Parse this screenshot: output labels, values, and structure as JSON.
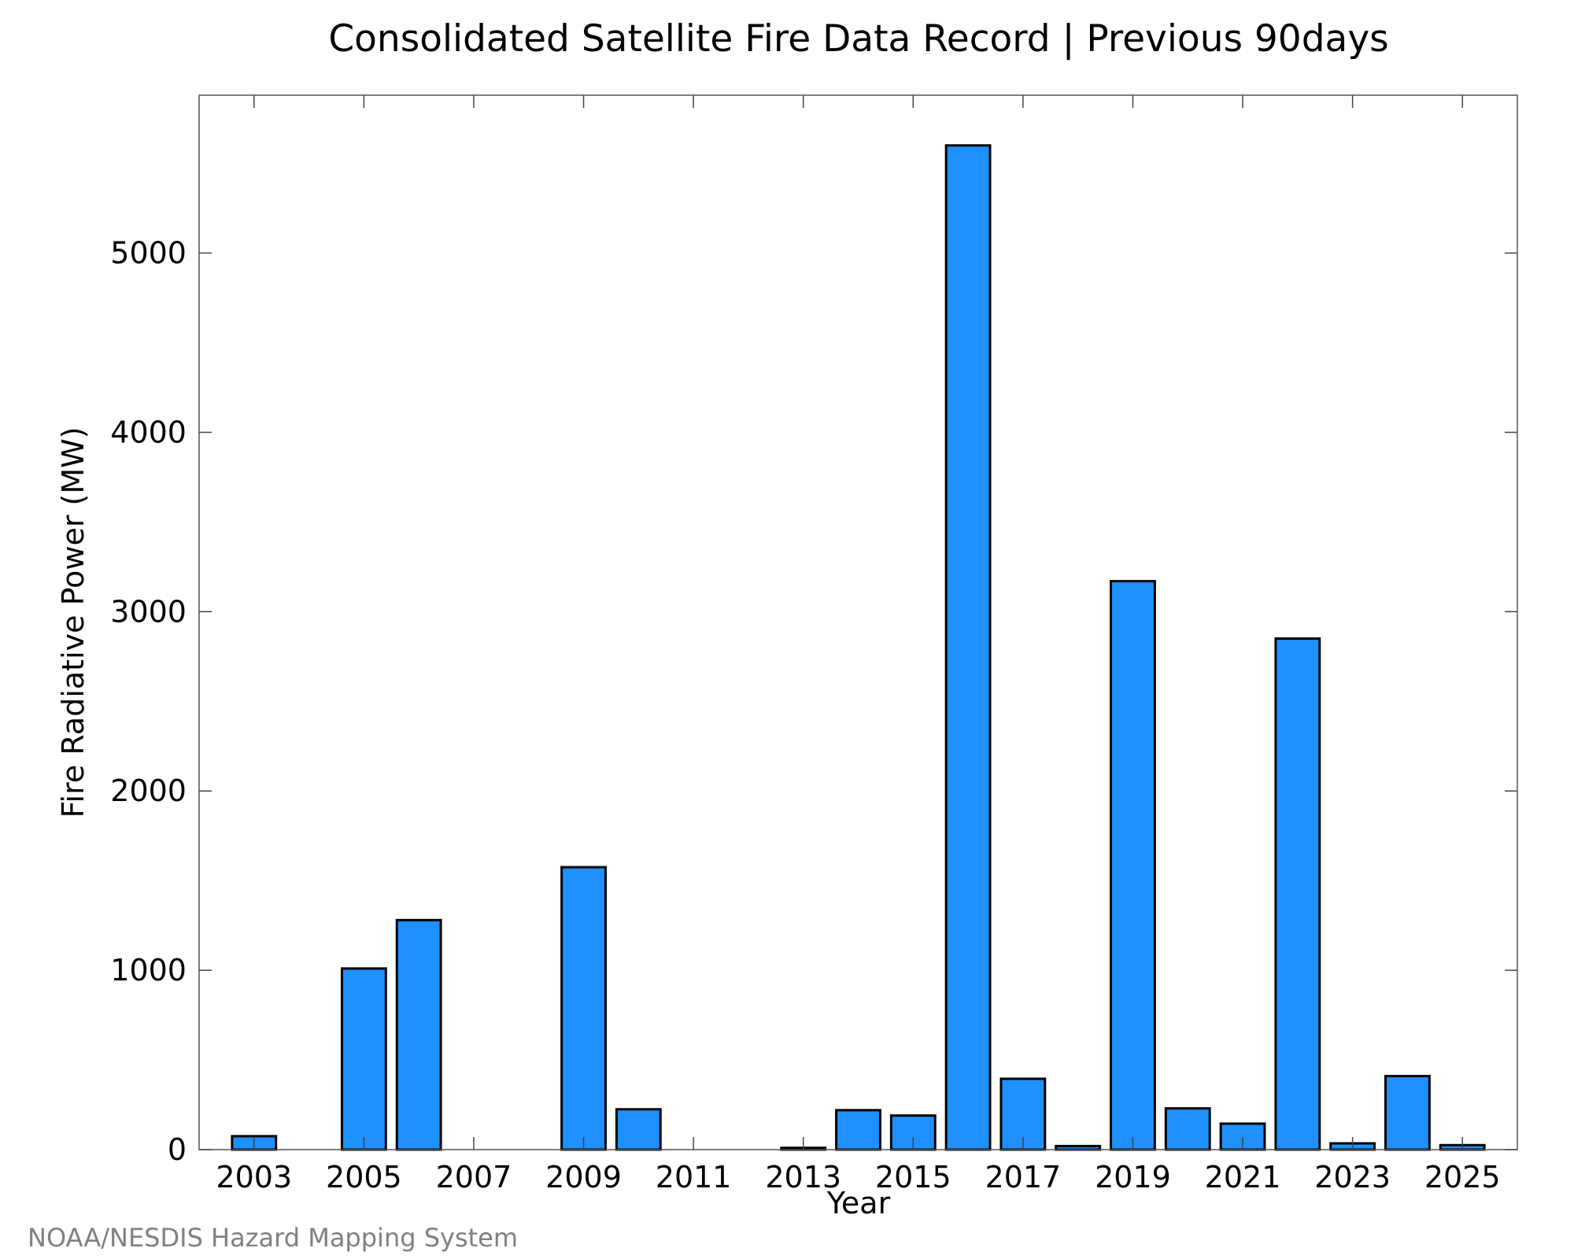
{
  "chart_data": {
    "type": "bar",
    "title": "Consolidated Satellite Fire Data Record | Previous 90days",
    "xlabel": "Year",
    "ylabel": "Fire Radiative Power (MW)",
    "x_tick_labels": [
      "2003",
      "2005",
      "2007",
      "2009",
      "2011",
      "2013",
      "2015",
      "2017",
      "2019",
      "2021",
      "2023",
      "2025"
    ],
    "y_tick_labels": [
      "0",
      "1000",
      "2000",
      "3000",
      "4000",
      "5000"
    ],
    "y_ticks": [
      0,
      1000,
      2000,
      3000,
      4000,
      5000
    ],
    "xlim": [
      2002,
      2026
    ],
    "ylim": [
      0,
      5880
    ],
    "grid": false,
    "categories": [
      2003,
      2004,
      2005,
      2006,
      2007,
      2008,
      2009,
      2010,
      2011,
      2012,
      2013,
      2014,
      2015,
      2016,
      2017,
      2018,
      2019,
      2020,
      2021,
      2022,
      2023,
      2024,
      2025
    ],
    "values": [
      75,
      0,
      1010,
      1280,
      0,
      0,
      1575,
      225,
      0,
      0,
      10,
      220,
      190,
      5600,
      395,
      20,
      3170,
      230,
      145,
      2850,
      35,
      410,
      25
    ],
    "bar_color": "#1e90ff"
  },
  "credit": "NOAA/NESDIS Hazard Mapping System"
}
